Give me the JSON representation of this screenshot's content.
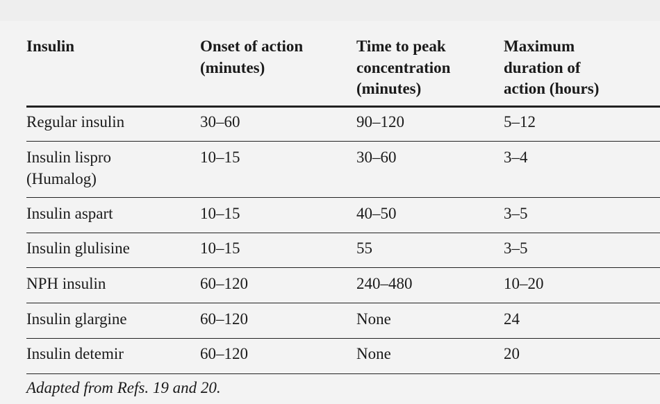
{
  "table": {
    "headers": [
      "Insulin",
      "Onset of action\n(minutes)",
      "Time to peak\nconcentration\n(minutes)",
      "Maximum\nduration of\naction (hours)"
    ],
    "rows": [
      [
        "Regular insulin",
        "30–60",
        "90–120",
        "5–12"
      ],
      [
        "Insulin lispro\n(Humalog)",
        "10–15",
        "30–60",
        "3–4"
      ],
      [
        "Insulin aspart",
        "10–15",
        "40–50",
        "3–5"
      ],
      [
        "Insulin glulisine",
        "10–15",
        "55",
        "3–5"
      ],
      [
        "NPH insulin",
        "60–120",
        "240–480",
        "10–20"
      ],
      [
        "Insulin glargine",
        "60–120",
        "None",
        "24"
      ],
      [
        "Insulin detemir",
        "60–120",
        "None",
        "20"
      ]
    ]
  },
  "footnote": "Adapted from Refs. 19 and 20."
}
